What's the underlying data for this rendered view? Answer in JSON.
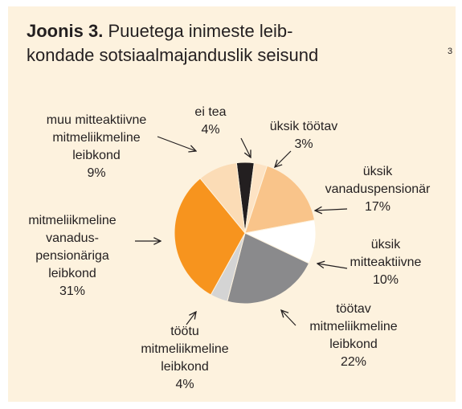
{
  "chart_data": {
    "type": "pie",
    "title_label": "Joonis 3.",
    "title_lines": [
      "Puuetega inimeste leib-",
      "kondade sotsiaalmajanduslik seisund"
    ],
    "footnote": "3",
    "categories": [
      [
        "ei tea"
      ],
      [
        "üksik töötav"
      ],
      [
        "üksik",
        "vanaduspensionär"
      ],
      [
        "üksik",
        "mitteaktiivne"
      ],
      [
        "töötav",
        "mitmeliikmeline",
        "leibkond"
      ],
      [
        "töötu",
        "mitmeliikmeline",
        "leibkond"
      ],
      [
        "mitmeliikmeline",
        "vanadus-",
        "pensionäriga",
        "leibkond"
      ],
      [
        "muu mitteaktiivne",
        "mitmeliikmeline",
        "leibkond"
      ]
    ],
    "values": [
      4,
      3,
      17,
      10,
      22,
      4,
      31,
      9
    ],
    "value_labels": [
      "4%",
      "3%",
      "17%",
      "10%",
      "22%",
      "4%",
      "31%",
      "9%"
    ],
    "colors": [
      "#231f20",
      "#fde3c4",
      "#f9c48a",
      "#ffffff",
      "#8a8a8c",
      "#d4d4d4",
      "#f7941e",
      "#fbdcb6"
    ]
  }
}
